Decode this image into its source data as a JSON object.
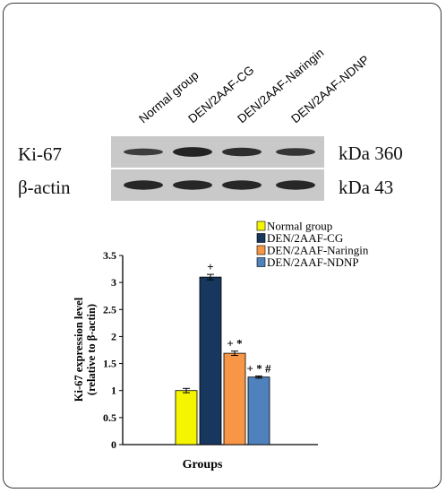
{
  "blot": {
    "lanes": [
      "Normal group",
      "DEN/2AAF-CG",
      "DEN/2AAF-Naringin",
      "DEN/2AAF-NDNP"
    ],
    "rows": [
      {
        "protein": "Ki-67",
        "kda": "kDa 360",
        "intensity": [
          0.45,
          0.95,
          0.75,
          0.6
        ]
      },
      {
        "protein": "β-actin",
        "kda": "kDa 43",
        "intensity": [
          0.9,
          0.9,
          0.9,
          0.9
        ]
      }
    ]
  },
  "chart_data": {
    "type": "bar",
    "title": "",
    "xlabel": "Groups",
    "ylabel": "Ki-67 expression level\n(relative to β-actin)",
    "ylim": [
      0,
      3.5
    ],
    "yticks": [
      "0",
      "0.5",
      "1",
      "1.5",
      "2",
      "2.5",
      "3",
      "3.5"
    ],
    "grid": false,
    "legend_position": "top-right",
    "series": [
      {
        "name": "Normal group",
        "value": 1.0,
        "error": 0.04,
        "color": "#f5f500",
        "annotation": ""
      },
      {
        "name": "DEN/2AAF-CG",
        "value": 3.1,
        "error": 0.05,
        "color": "#17375e",
        "annotation": "+"
      },
      {
        "name": "DEN/2AAF-Naringin",
        "value": 1.69,
        "error": 0.04,
        "color": "#f79646",
        "annotation": "+ *"
      },
      {
        "name": "DEN/2AAF-NDNP",
        "value": 1.25,
        "error": 0.02,
        "color": "#4f81bd",
        "annotation": "+ * #"
      }
    ]
  }
}
